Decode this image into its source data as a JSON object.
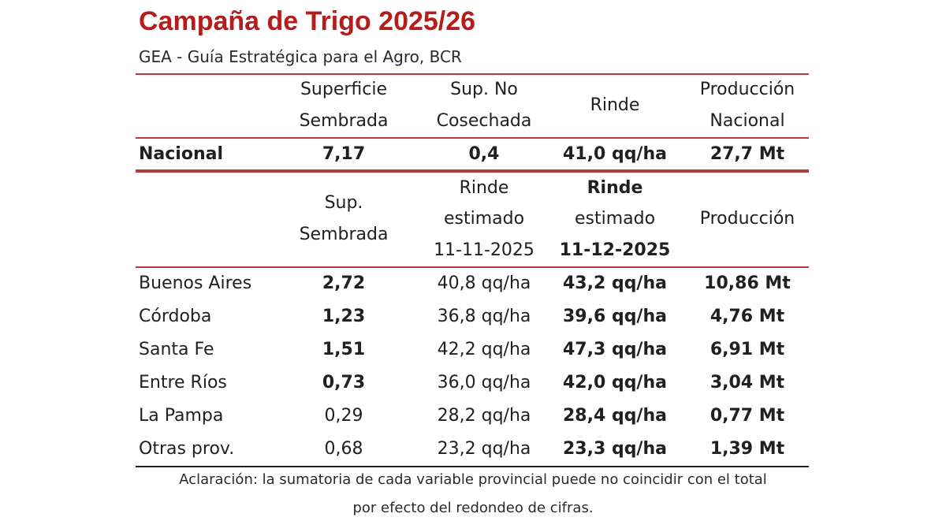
{
  "title": "Campaña de Trigo 2025/26",
  "subtitle": "GEA - Guía Estratégica para el Agro, BCR",
  "top_headers": {
    "c1": [
      "Superficie",
      "Sembrada"
    ],
    "c2": [
      "Sup. No",
      "Cosechada"
    ],
    "c3": "Rinde",
    "c4": [
      "Producción",
      "Nacional"
    ]
  },
  "national": {
    "name": "Nacional",
    "sup": "7,17",
    "no_cos": "0,4",
    "rinde": "41,0 qq/ha",
    "prod": "27,7 Mt"
  },
  "prov_headers": {
    "c1": [
      "Sup.",
      "Sembrada"
    ],
    "c2": [
      "Rinde",
      "estimado",
      "11-11-2025"
    ],
    "c3": [
      "Rinde",
      "estimado",
      "11-12-2025"
    ],
    "c4": "Producción"
  },
  "provinces": [
    {
      "name": "Buenos Aires",
      "sup": "2,72",
      "r1": "40,8 qq/ha",
      "r2": "43,2 qq/ha",
      "prod": "10,86 Mt"
    },
    {
      "name": "Córdoba",
      "sup": "1,23",
      "r1": "36,8 qq/ha",
      "r2": "39,6 qq/ha",
      "prod": "4,76 Mt"
    },
    {
      "name": "Santa Fe",
      "sup": "1,51",
      "r1": "42,2 qq/ha",
      "r2": "47,3 qq/ha",
      "prod": "6,91 Mt"
    },
    {
      "name": "Entre Ríos",
      "sup": "0,73",
      "r1": "36,0 qq/ha",
      "r2": "42,0 qq/ha",
      "prod": "3,04 Mt"
    },
    {
      "name": "La Pampa",
      "sup": "0,29",
      "r1": "28,2 qq/ha",
      "r2": "28,4 qq/ha",
      "prod": "0,77 Mt"
    },
    {
      "name": "Otras prov.",
      "sup": "0,68",
      "r1": "23,2 qq/ha",
      "r2": "23,3 qq/ha",
      "prod": "1,39 Mt"
    }
  ],
  "note": [
    "Aclaración: la sumatoria de cada variable provincial puede no coincidir con el total",
    "por efecto del redondeo de cifras."
  ],
  "colors": {
    "title": "#b51c1c",
    "rule": "#b53a3a"
  }
}
